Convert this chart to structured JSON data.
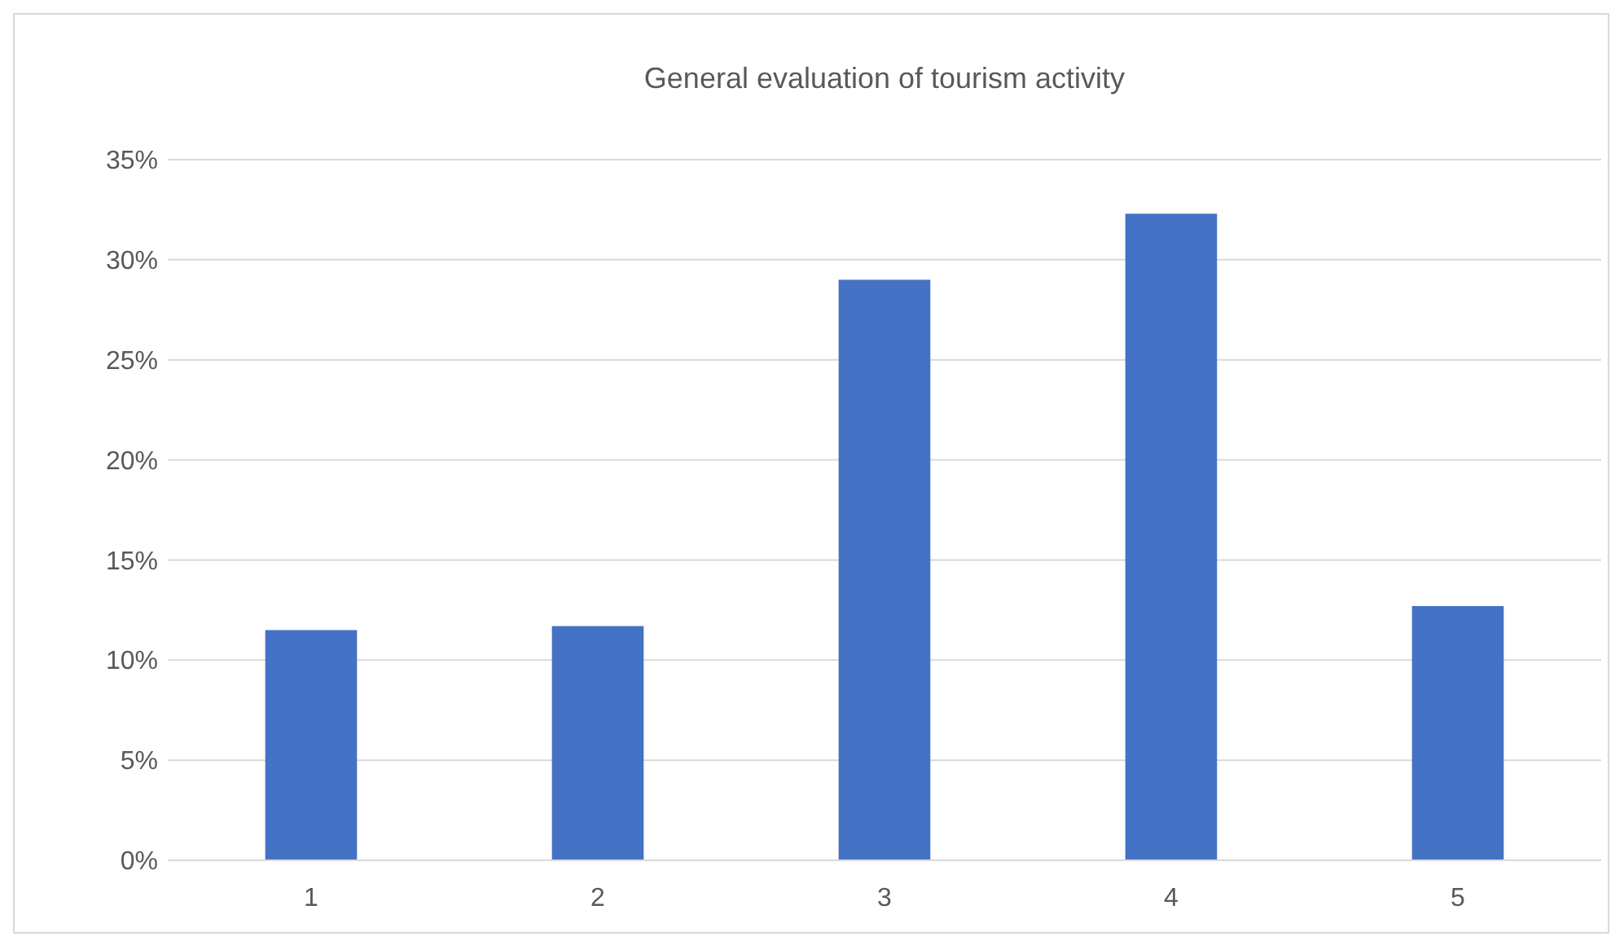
{
  "chart_data": {
    "type": "bar",
    "title": "General evaluation of tourism activity",
    "categories": [
      "1",
      "2",
      "3",
      "4",
      "5"
    ],
    "values": [
      11.5,
      11.7,
      29.0,
      32.3,
      12.7
    ],
    "color": "#4472c4",
    "ylim": [
      0,
      35
    ],
    "yticks": [
      {
        "value": 0,
        "label": "0%"
      },
      {
        "value": 5,
        "label": "5%"
      },
      {
        "value": 10,
        "label": "10%"
      },
      {
        "value": 15,
        "label": "15%"
      },
      {
        "value": 20,
        "label": "20%"
      },
      {
        "value": 25,
        "label": "25%"
      },
      {
        "value": 30,
        "label": "30%"
      },
      {
        "value": 35,
        "label": "35%"
      }
    ],
    "grid": "y"
  }
}
